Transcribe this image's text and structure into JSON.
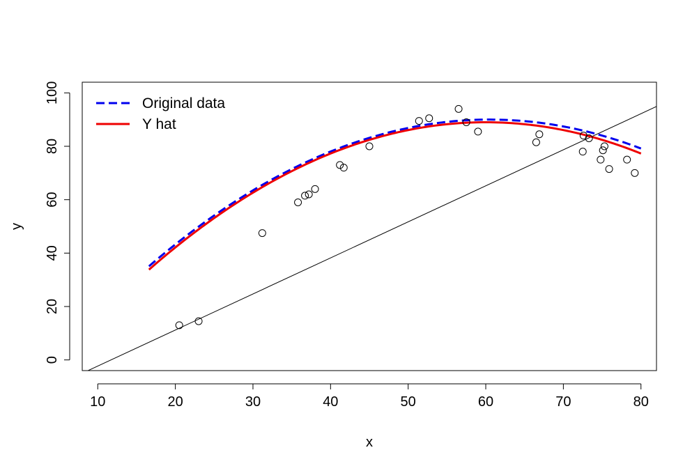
{
  "chart_data": {
    "type": "scatter",
    "title": "",
    "xlabel": "x",
    "ylabel": "y",
    "xlim": [
      8,
      82
    ],
    "ylim": [
      -4,
      104
    ],
    "x_ticks": [
      10,
      20,
      30,
      40,
      50,
      60,
      70,
      80
    ],
    "y_ticks": [
      0,
      20,
      40,
      60,
      80,
      100
    ],
    "x_tick_labels": [
      "10",
      "20",
      "30",
      "40",
      "50",
      "60",
      "70",
      "80"
    ],
    "y_tick_labels": [
      "0",
      "20",
      "40",
      "60",
      "80",
      "100"
    ],
    "legend": {
      "placement": "top-left",
      "entries": [
        {
          "label": "Original data",
          "color": "#0000ee",
          "style": "dashed"
        },
        {
          "label": "Y hat",
          "color": "#ee0000",
          "style": "solid"
        }
      ]
    },
    "points": [
      [
        20.5,
        13
      ],
      [
        23.0,
        14.5
      ],
      [
        31.2,
        47.5
      ],
      [
        35.8,
        59
      ],
      [
        36.7,
        61.5
      ],
      [
        37.2,
        62
      ],
      [
        38.0,
        64
      ],
      [
        41.2,
        73
      ],
      [
        41.7,
        72
      ],
      [
        45.0,
        80
      ],
      [
        51.4,
        89.5
      ],
      [
        52.7,
        90.5
      ],
      [
        56.5,
        94
      ],
      [
        57.5,
        89
      ],
      [
        59.0,
        85.5
      ],
      [
        66.5,
        81.5
      ],
      [
        66.9,
        84.5
      ],
      [
        72.5,
        78
      ],
      [
        72.6,
        84
      ],
      [
        73.3,
        83
      ],
      [
        74.8,
        75
      ],
      [
        75.1,
        78.5
      ],
      [
        75.3,
        80
      ],
      [
        75.9,
        71.5
      ],
      [
        78.2,
        75
      ],
      [
        79.2,
        70
      ]
    ],
    "series": [
      {
        "name": "Original data",
        "color": "#0000ee",
        "style": "dashed",
        "curve": {
          "form": "quadratic",
          "vertex_x": 60.5,
          "vertex_y": 90,
          "a": -0.0285,
          "x_range": [
            16.6,
            80
          ]
        }
      },
      {
        "name": "Y hat",
        "color": "#ee0000",
        "style": "solid",
        "curve": {
          "form": "quadratic",
          "vertex_x": 60.0,
          "vertex_y": 89,
          "a": -0.0293,
          "x_range": [
            16.6,
            80
          ]
        }
      },
      {
        "name": "",
        "color": "#000000",
        "style": "solid",
        "line": {
          "slope": 1.35,
          "intercept": -15.8,
          "x_range": [
            8,
            82
          ]
        }
      }
    ]
  }
}
